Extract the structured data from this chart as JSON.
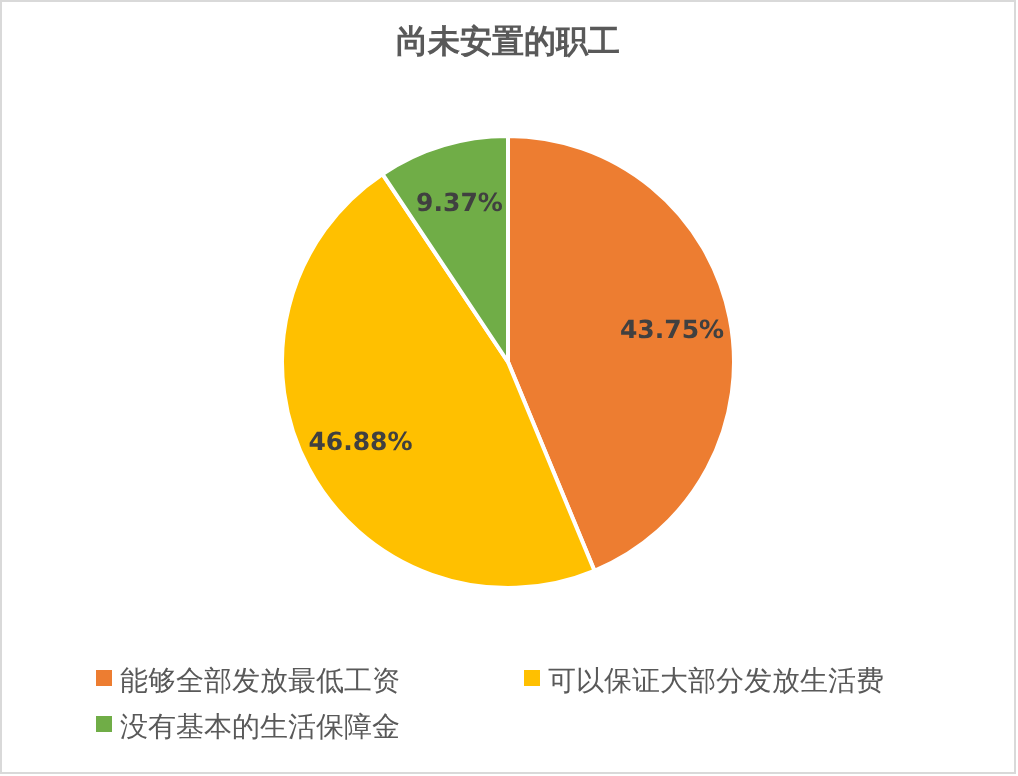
{
  "chart_data": {
    "type": "pie",
    "title": "尚未安置的职工",
    "categories": [
      "能够全部发放最低工资",
      "可以保证大部分发放生活费",
      "没有基本的生活保障金"
    ],
    "values": [
      43.75,
      46.88,
      9.37
    ],
    "colors": [
      "#ed7d31",
      "#ffc000",
      "#70ad47"
    ],
    "value_labels": [
      "43.75%",
      "46.88%",
      "9.37%"
    ],
    "legend": "bottom"
  }
}
